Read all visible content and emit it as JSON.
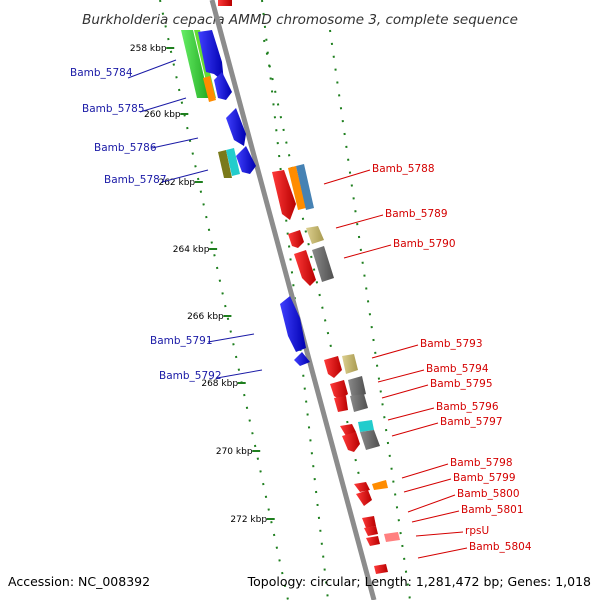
{
  "title": "Burkholderia cepacia AMMD chromosome 3, complete sequence",
  "accession": "Accession: NC_008392",
  "topology": "Topology: circular; Length: 1,281,472 bp; Genes: 1,018",
  "colors": {
    "backbone": "#8c8c8c",
    "tick": "#1e7f1e",
    "left_label": "#1a1aa6",
    "right_label": "#d40000",
    "leader": "#000000"
  },
  "ticks": [
    {
      "label": "258 kbp",
      "kbp": 258
    },
    {
      "label": "260 kbp",
      "kbp": 260
    },
    {
      "label": "262 kbp",
      "kbp": 262
    },
    {
      "label": "264 kbp",
      "kbp": 264
    },
    {
      "label": "266 kbp",
      "kbp": 266
    },
    {
      "label": "268 kbp",
      "kbp": 268
    },
    {
      "label": "270 kbp",
      "kbp": 270
    },
    {
      "label": "272 kbp",
      "kbp": 272
    }
  ],
  "genes_left": [
    {
      "name": "Bamb_5784",
      "color": "blue"
    },
    {
      "name": "Bamb_5785",
      "color": "blue"
    },
    {
      "name": "Bamb_5786",
      "color": "blue"
    },
    {
      "name": "Bamb_5787",
      "color": "blue"
    },
    {
      "name": "Bamb_5791",
      "color": "blue"
    },
    {
      "name": "Bamb_5792",
      "color": "blue"
    }
  ],
  "genes_right": [
    {
      "name": "Bamb_5788",
      "color": "red"
    },
    {
      "name": "Bamb_5789",
      "color": "red"
    },
    {
      "name": "Bamb_5790",
      "color": "red"
    },
    {
      "name": "Bamb_5793",
      "color": "red"
    },
    {
      "name": "Bamb_5794",
      "color": "red"
    },
    {
      "name": "Bamb_5795",
      "color": "red"
    },
    {
      "name": "Bamb_5796",
      "color": "red"
    },
    {
      "name": "Bamb_5797",
      "color": "red"
    },
    {
      "name": "Bamb_5798",
      "color": "red"
    },
    {
      "name": "Bamb_5799",
      "color": "red"
    },
    {
      "name": "Bamb_5800",
      "color": "red"
    },
    {
      "name": "Bamb_5801",
      "color": "red"
    },
    {
      "name": "rpsU",
      "color": "red"
    },
    {
      "name": "Bamb_5804",
      "color": "red"
    }
  ],
  "feature_colors": {
    "forward_cds": "#e80000",
    "reverse_cds": "#1010e0",
    "gc_green": "#33cc33",
    "gc_orange": "#ff8c00",
    "gc_olive": "#7a7a1a",
    "gc_cyan": "#22cccc",
    "gc_steel": "#4682b4",
    "gc_khaki": "#c8bc70",
    "gc_grey": "#6e6e6e",
    "rna_pink": "#ff8080"
  }
}
